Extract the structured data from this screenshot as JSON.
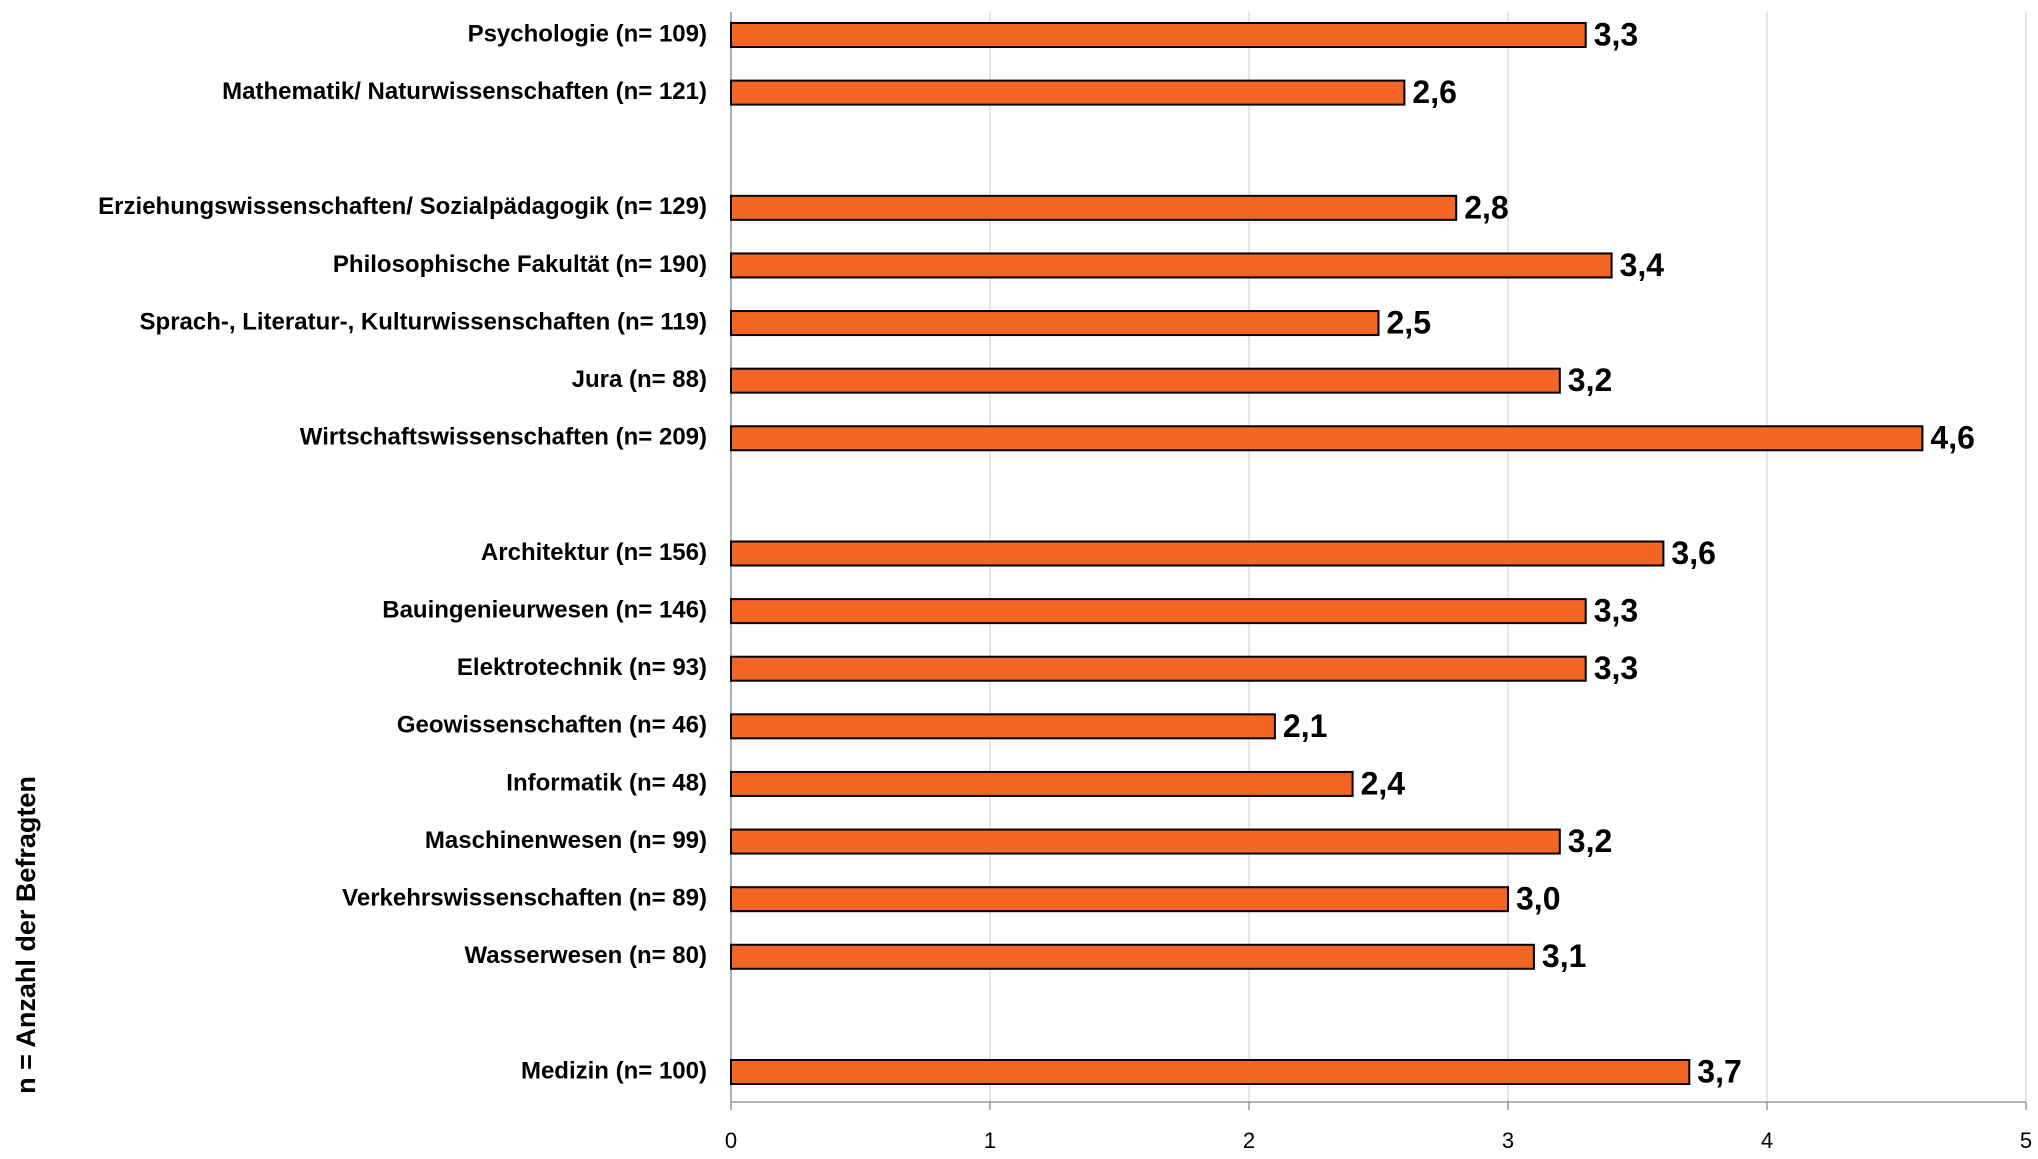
{
  "chart_data": {
    "type": "barh",
    "y_label": "n = Anzahl der Befragten",
    "categories": [
      "Psychologie (n= 109)",
      "Mathematik/ Naturwissenschaften (n= 121)",
      null,
      "Erziehungswissenschaften/ Sozialpädagogik (n= 129)",
      "Philosophische Fakultät (n= 190)",
      "Sprach-, Literatur-, Kulturwissenschaften (n= 119)",
      "Jura (n= 88)",
      "Wirtschaftswissenschaften (n= 209)",
      null,
      "Architektur (n= 156)",
      "Bauingenieurwesen (n= 146)",
      "Elektrotechnik (n= 93)",
      "Geowissenschaften (n= 46)",
      "Informatik (n= 48)",
      "Maschinenwesen (n= 99)",
      "Verkehrswissenschaften (n= 89)",
      "Wasserwesen (n= 80)",
      null,
      "Medizin (n= 100)"
    ],
    "values": [
      3.3,
      2.6,
      null,
      2.8,
      3.4,
      2.5,
      3.2,
      4.6,
      null,
      3.6,
      3.3,
      3.3,
      2.1,
      2.4,
      3.2,
      3.0,
      3.1,
      null,
      3.7
    ],
    "value_labels": [
      "3,3",
      "2,6",
      null,
      "2,8",
      "3,4",
      "2,5",
      "3,2",
      "4,6",
      null,
      "3,6",
      "3,3",
      "3,3",
      "2,1",
      "2,4",
      "3,2",
      "3,0",
      "3,1",
      null,
      "3,7"
    ],
    "color": "#f26522",
    "xlim": [
      0,
      5
    ],
    "xticks": [
      0,
      1,
      2,
      3,
      4,
      5
    ],
    "grid": true
  }
}
